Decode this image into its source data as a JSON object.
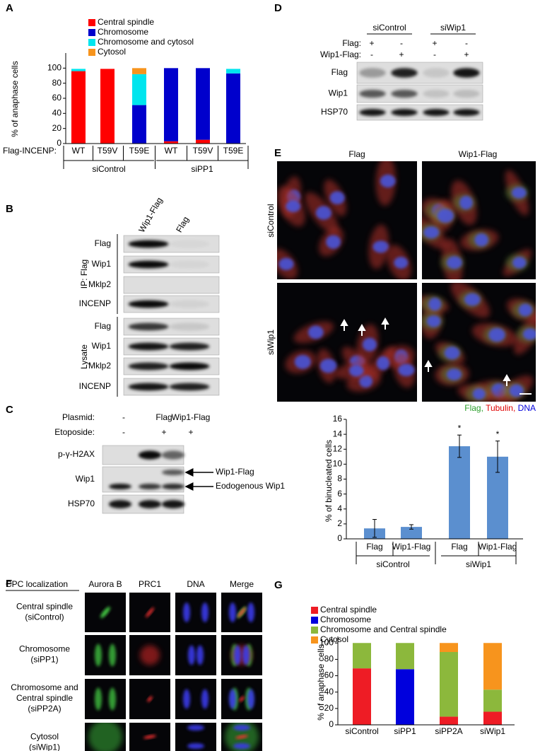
{
  "panel_labels": [
    "A",
    "B",
    "C",
    "D",
    "E",
    "F",
    "G"
  ],
  "chart_data": [
    {
      "type": "bar",
      "stacked": true,
      "y_label": "% of anaphase cells",
      "x_prefix": "Flag-INCENP:",
      "categories": [
        "WT",
        "T59V",
        "T59E",
        "WT",
        "T59V",
        "T59E"
      ],
      "groups": [
        "siControl",
        "siPP1"
      ],
      "series": [
        {
          "name": "Central spindle",
          "color": "#ff0000",
          "values": [
            96,
            99,
            0,
            3,
            5,
            0
          ]
        },
        {
          "name": "Chromosome",
          "color": "#0000cc",
          "values": [
            0,
            0,
            51,
            97,
            95,
            93
          ]
        },
        {
          "name": "Chromosome and cytosol",
          "color": "#00e5ee",
          "values": [
            3,
            0,
            41,
            0,
            0,
            6
          ]
        },
        {
          "name": "Cytosol",
          "color": "#f7941d",
          "values": [
            0,
            0,
            8,
            0,
            0,
            0
          ]
        }
      ],
      "ylim": [
        0,
        120
      ],
      "yticks": [
        0,
        20,
        40,
        60,
        80,
        100
      ]
    },
    {
      "type": "bar",
      "y_label": "% of binucleated cells",
      "categories": [
        "Flag",
        "Wip1-Flag",
        "Flag",
        "Wip1-Flag"
      ],
      "groups": [
        "siControl",
        "siWip1"
      ],
      "values": [
        1.4,
        1.6,
        12.4,
        11.0
      ],
      "errors": [
        1.2,
        0.3,
        1.5,
        2.1
      ],
      "annotations": [
        null,
        null,
        "*",
        "*"
      ],
      "color": "#5b8fcf",
      "ylim": [
        0,
        16
      ],
      "yticks": [
        0,
        2,
        4,
        6,
        8,
        10,
        12,
        14,
        16
      ]
    },
    {
      "type": "bar",
      "stacked": true,
      "y_label": "% of anaphase cells",
      "categories": [
        "siControl",
        "siPP1",
        "siPP2A",
        "siWip1"
      ],
      "series": [
        {
          "name": "Central spindle",
          "color": "#ee1c25",
          "values": [
            69,
            0,
            10,
            16
          ]
        },
        {
          "name": "Chromosome",
          "color": "#0000dd",
          "values": [
            0,
            68,
            0,
            0
          ]
        },
        {
          "name": "Chromosome and Central spindle",
          "color": "#8cb83c",
          "values": [
            31,
            32,
            79,
            27
          ]
        },
        {
          "name": "Cytosol",
          "color": "#f7941d",
          "values": [
            0,
            0,
            11,
            57
          ]
        }
      ],
      "ylim": [
        0,
        108
      ],
      "yticks": [
        0,
        20,
        40,
        60,
        80,
        100
      ]
    }
  ],
  "blot_B": {
    "columns": [
      "Wip1-Flag",
      "Flag"
    ],
    "groups": [
      {
        "label": "IP: Flag",
        "rows": [
          "Flag",
          "Wip1",
          "Mklp2",
          "INCENP"
        ]
      },
      {
        "label": "Lysate",
        "rows": [
          "Flag",
          "Wip1",
          "Mklp2",
          "INCENP"
        ]
      }
    ]
  },
  "blot_C": {
    "conditions": [
      {
        "label": "Plasmid:",
        "values": [
          "-",
          "Flag",
          "Wip1-Flag"
        ]
      },
      {
        "label": "Etoposide:",
        "values": [
          "-",
          "+",
          "+"
        ]
      }
    ],
    "rows": [
      "p-γ-H2AX",
      "Wip1",
      "HSP70"
    ],
    "arrows": [
      "Wip1-Flag",
      "Eodogenous Wip1"
    ]
  },
  "blot_D": {
    "groups": [
      "siControl",
      "siWip1"
    ],
    "conditions": [
      {
        "label": "Flag:",
        "values": [
          "+",
          "-",
          "+",
          "-"
        ]
      },
      {
        "label": "Wip1-Flag:",
        "values": [
          "-",
          "+",
          "-",
          "+"
        ]
      }
    ],
    "rows": [
      "Flag",
      "Wip1",
      "HSP70"
    ]
  },
  "images_E": {
    "columns": [
      "Flag",
      "Wip1-Flag"
    ],
    "rows": [
      "siControl",
      "siWip1"
    ],
    "caption": [
      "Flag,",
      "Tubulin,",
      "DNA"
    ]
  },
  "images_F": {
    "header": "CPC localization",
    "columns": [
      "Aurora B",
      "PRC1",
      "DNA",
      "Merge"
    ],
    "rows": [
      [
        "Central spindle",
        "(siControl)"
      ],
      [
        "Chromosome",
        "(siPP1)"
      ],
      [
        "Chromosome and",
        "Central spindle",
        "(siPP2A)"
      ],
      [
        "Cytosol",
        "(siWip1)"
      ]
    ]
  }
}
